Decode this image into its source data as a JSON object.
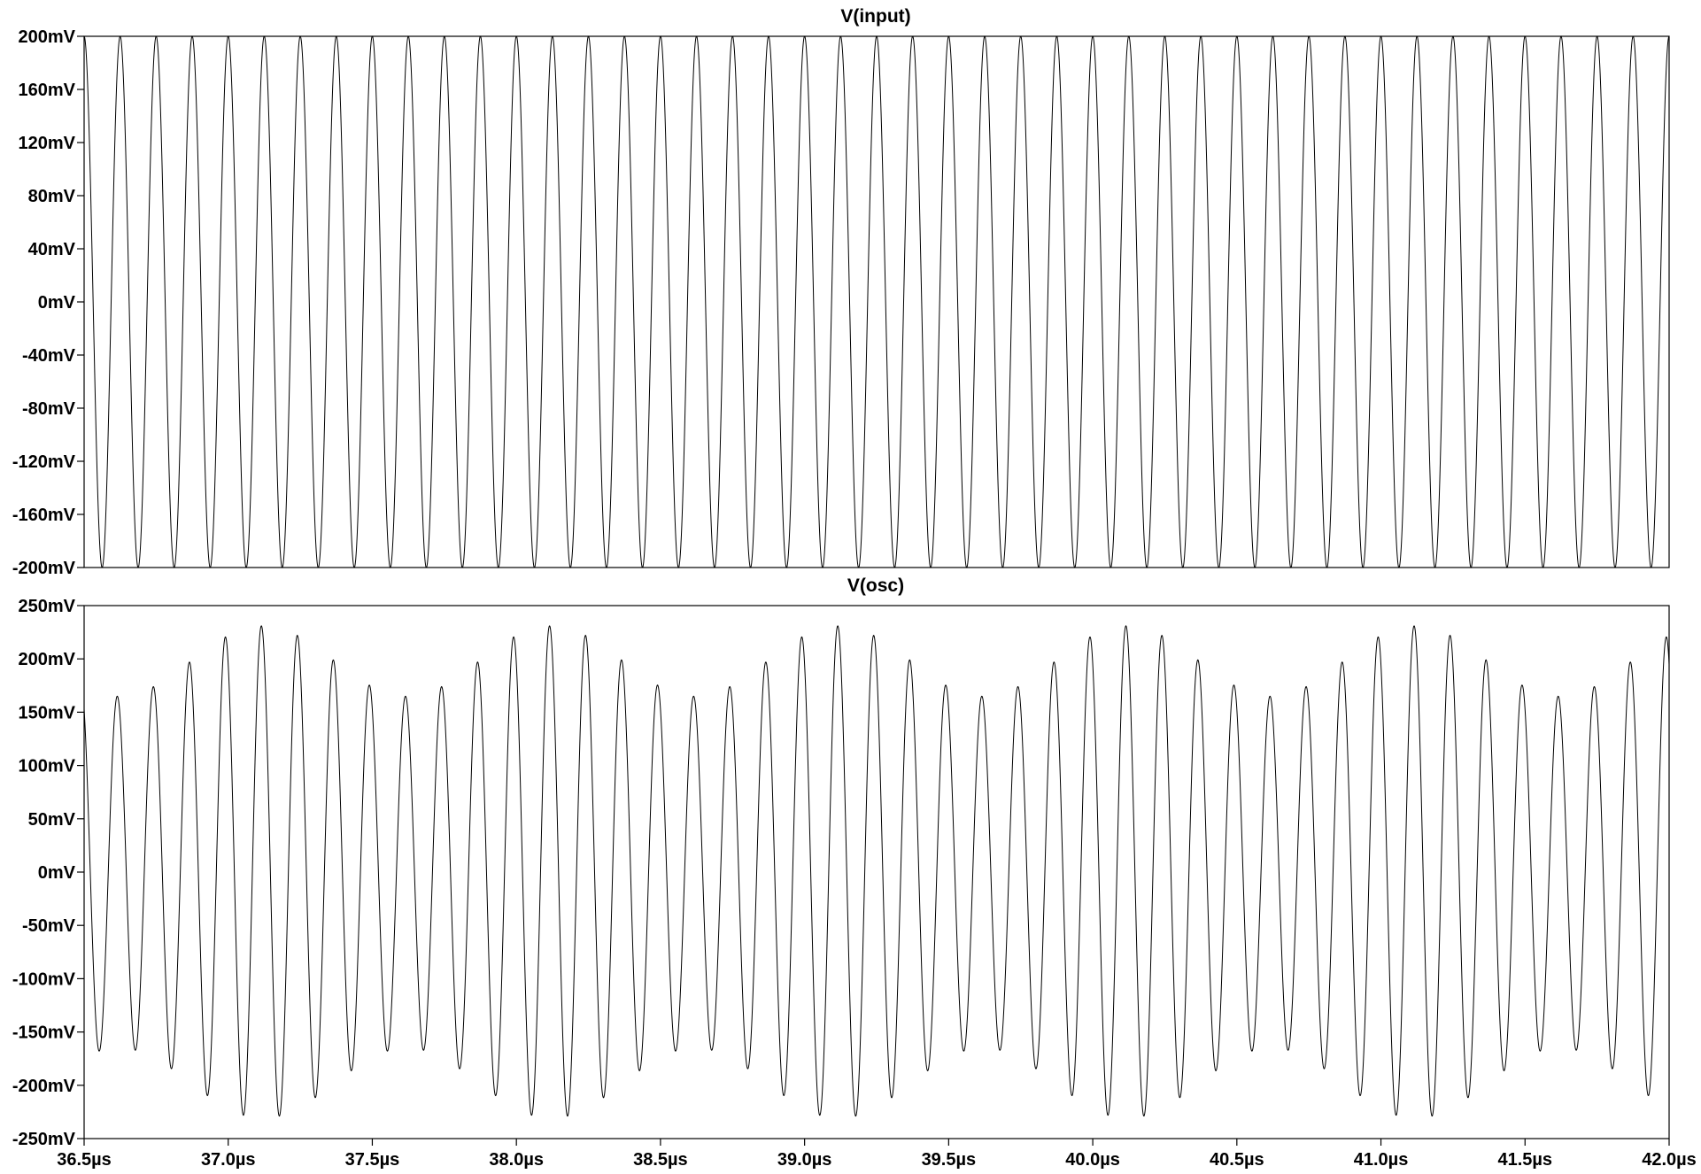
{
  "chart_data": [
    {
      "type": "line",
      "title": "V(input)",
      "series": [
        {
          "name": "V(input)",
          "waveform": "sine",
          "amplitude_mV": 200,
          "offset_mV": 0,
          "cycles_per_us": 8
        }
      ],
      "xlim_us": [
        36.5,
        42.0
      ],
      "ylim_mV": [
        -200,
        200
      ],
      "y_ticks": [
        200,
        160,
        120,
        80,
        40,
        0,
        -40,
        -80,
        -120,
        -160,
        -200
      ],
      "y_tick_labels": [
        "200mV",
        "160mV",
        "120mV",
        "80mV",
        "40mV",
        "0mV",
        "-40mV",
        "-80mV",
        "-120mV",
        "-160mV",
        "-200mV"
      ],
      "grid": false
    },
    {
      "type": "line",
      "title": "V(osc)",
      "series": [
        {
          "name": "V(osc)",
          "waveform": "sine with slow amplitude modulation",
          "cycles_per_us": 8,
          "peak_envelope_mV": {
            "mean": 198,
            "swing": 33,
            "period_us": 1.0
          },
          "trough_envelope_mV": {
            "mean": -198,
            "swing": 33,
            "period_us": 1.0
          },
          "first_peak_mV": 180,
          "max_peak_mV": 231,
          "min_peak_mV": 166,
          "min_trough_mV": -231,
          "max_trough_mV": -166
        }
      ],
      "xlim_us": [
        36.5,
        42.0
      ],
      "ylim_mV": [
        -250,
        250
      ],
      "y_ticks": [
        250,
        200,
        150,
        100,
        50,
        0,
        -50,
        -100,
        -150,
        -200,
        -250
      ],
      "y_tick_labels": [
        "250mV",
        "200mV",
        "150mV",
        "100mV",
        "50mV",
        "0mV",
        "-50mV",
        "-100mV",
        "-150mV",
        "-200mV",
        "-250mV"
      ],
      "x_ticks": [
        36.5,
        37.0,
        37.5,
        38.0,
        38.5,
        39.0,
        39.5,
        40.0,
        40.5,
        41.0,
        41.5,
        42.0
      ],
      "x_tick_labels": [
        "36.5µs",
        "37.0µs",
        "37.5µs",
        "38.0µs",
        "38.5µs",
        "39.0µs",
        "39.5µs",
        "40.0µs",
        "40.5µs",
        "41.0µs",
        "41.5µs",
        "42.0µs"
      ],
      "grid": false
    }
  ]
}
